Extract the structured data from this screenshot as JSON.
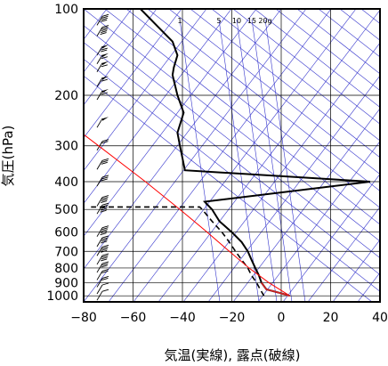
{
  "chart_data": {
    "type": "line",
    "subtype": "skew-t log-p sounding",
    "xlabel": "気温(実線), 露点(破線)",
    "ylabel": "気圧(hPa)",
    "xlim": [
      -80,
      40
    ],
    "ylim": [
      1050,
      100
    ],
    "y_scale": "log",
    "x_ticks": [
      "−80",
      "−60",
      "−40",
      "−20",
      "0",
      "20",
      "40"
    ],
    "x_tick_values": [
      -80,
      -60,
      -40,
      -20,
      0,
      20,
      40
    ],
    "y_ticks": [
      "100",
      "200",
      "300",
      "400",
      "500",
      "600",
      "700",
      "800",
      "900",
      "1000"
    ],
    "y_tick_values": [
      100,
      200,
      300,
      400,
      500,
      600,
      700,
      800,
      900,
      1000
    ],
    "mixing_ratio_labels": [
      "1",
      "5",
      "10",
      "15",
      "20g"
    ],
    "colors": {
      "grid": "#000000",
      "background_lines": "#3333cc",
      "temperature": "#000000",
      "dewpoint": "#000000",
      "parcel": "#ff0000",
      "temperature_near_surface": "#cc2222"
    },
    "grid": true,
    "series": [
      {
        "style": "solid",
        "points": [
          {
            "p": 1000,
            "t": 3.5
          },
          {
            "p": 975,
            "t": -1
          },
          {
            "p": 950,
            "t": -6
          },
          {
            "p": 900,
            "t": -8
          },
          {
            "p": 850,
            "t": -9
          },
          {
            "p": 800,
            "t": -10.5
          },
          {
            "p": 750,
            "t": -12
          },
          {
            "p": 700,
            "t": -13.5
          },
          {
            "p": 650,
            "t": -16
          },
          {
            "p": 600,
            "t": -20
          },
          {
            "p": 550,
            "t": -25
          },
          {
            "p": 500,
            "t": -28
          },
          {
            "p": 480,
            "t": -30
          },
          {
            "p": 470,
            "t": -31
          },
          {
            "p": 400,
            "t": 36
          },
          {
            "p": 365,
            "t": -39
          },
          {
            "p": 300,
            "t": -41
          },
          {
            "p": 270,
            "t": -42
          },
          {
            "p": 230,
            "t": -39.5
          },
          {
            "p": 200,
            "t": -42
          },
          {
            "p": 170,
            "t": -44
          },
          {
            "p": 160,
            "t": -43.5
          },
          {
            "p": 145,
            "t": -42
          },
          {
            "p": 130,
            "t": -44
          },
          {
            "p": 100,
            "t": -57
          }
        ]
      },
      {
        "style": "dashed",
        "points": [
          {
            "p": 1000,
            "t": -7
          },
          {
            "p": 950,
            "t": -8.5
          },
          {
            "p": 900,
            "t": -10
          },
          {
            "p": 850,
            "t": -12
          },
          {
            "p": 800,
            "t": -13.5
          },
          {
            "p": 750,
            "t": -16
          },
          {
            "p": 700,
            "t": -18.5
          },
          {
            "p": 650,
            "t": -21
          },
          {
            "p": 600,
            "t": -24
          },
          {
            "p": 550,
            "t": -28
          },
          {
            "p": 500,
            "t": -32
          },
          {
            "p": 490,
            "t": -33
          },
          {
            "p": 490,
            "t": -77
          }
        ]
      },
      {
        "style": "parcel",
        "points": [
          {
            "p": 1000,
            "t": 3.5
          },
          {
            "p": 900,
            "t": -5
          },
          {
            "p": 800,
            "t": -13
          },
          {
            "p": 700,
            "t": -21
          },
          {
            "p": 600,
            "t": -30
          },
          {
            "p": 500,
            "t": -41
          },
          {
            "p": 400,
            "t": -55
          },
          {
            "p": 300,
            "t": -74
          },
          {
            "p": 250,
            "t": -86
          }
        ]
      }
    ],
    "wind_barbs": [
      {
        "p": 1000,
        "speed": 5
      },
      {
        "p": 950,
        "speed": 10
      },
      {
        "p": 900,
        "speed": 15
      },
      {
        "p": 850,
        "speed": 20
      },
      {
        "p": 800,
        "speed": 30
      },
      {
        "p": 750,
        "speed": 35
      },
      {
        "p": 700,
        "speed": 40
      },
      {
        "p": 650,
        "speed": 40
      },
      {
        "p": 600,
        "speed": 45
      },
      {
        "p": 500,
        "speed": 45
      },
      {
        "p": 470,
        "speed": 40
      },
      {
        "p": 400,
        "speed": 25
      },
      {
        "p": 350,
        "speed": 30
      },
      {
        "p": 300,
        "speed": 20
      },
      {
        "p": 250,
        "speed": 50
      },
      {
        "p": 200,
        "speed": 55
      },
      {
        "p": 180,
        "speed": 55
      },
      {
        "p": 160,
        "speed": 55
      },
      {
        "p": 150,
        "speed": 60
      },
      {
        "p": 140,
        "speed": 65
      },
      {
        "p": 120,
        "speed": 45
      },
      {
        "p": 110,
        "speed": 40
      }
    ]
  }
}
